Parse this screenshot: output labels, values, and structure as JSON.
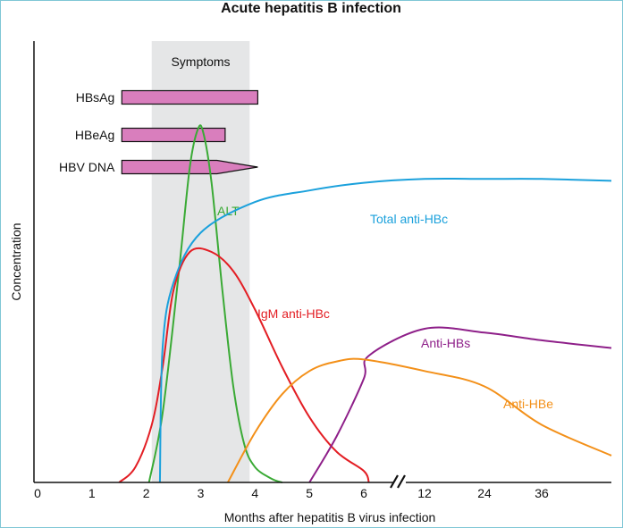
{
  "chart_data": {
    "type": "line",
    "title": "Acute hepatitis B infection",
    "xlabel": "Months after hepatitis B virus infection",
    "ylabel": "Concentration",
    "x_ticks": [
      "0",
      "1",
      "2",
      "3",
      "4",
      "5",
      "6",
      "12",
      "24",
      "36"
    ],
    "x_axis_note": "axis break between 6 and 12",
    "symptoms_band": {
      "label": "Symptoms",
      "start": 2.1,
      "end": 3.9
    },
    "markers": [
      {
        "name": "HBsAg",
        "start": 1.55,
        "end": 4.05,
        "shape": "bar"
      },
      {
        "name": "HBeAg",
        "start": 1.55,
        "end": 3.45,
        "shape": "bar"
      },
      {
        "name": "HBV DNA",
        "start": 1.55,
        "end": 4.05,
        "shape": "arrow"
      }
    ],
    "series": [
      {
        "name": "ALT",
        "color": "#3aaa35",
        "points": [
          [
            2.05,
            0
          ],
          [
            2.3,
            0.18
          ],
          [
            2.6,
            0.55
          ],
          [
            2.8,
            0.82
          ],
          [
            2.95,
            0.92
          ],
          [
            3.05,
            0.91
          ],
          [
            3.2,
            0.78
          ],
          [
            3.4,
            0.5
          ],
          [
            3.6,
            0.25
          ],
          [
            3.8,
            0.1
          ],
          [
            4.0,
            0.04
          ],
          [
            4.3,
            0.01
          ],
          [
            4.5,
            0
          ]
        ]
      },
      {
        "name": "IgM anti-HBc",
        "color": "#e31e24",
        "points": [
          [
            1.5,
            0
          ],
          [
            1.8,
            0.04
          ],
          [
            2.1,
            0.15
          ],
          [
            2.3,
            0.3
          ],
          [
            2.5,
            0.5
          ],
          [
            2.8,
            0.6
          ],
          [
            3.2,
            0.6
          ],
          [
            3.6,
            0.55
          ],
          [
            4.0,
            0.45
          ],
          [
            4.5,
            0.3
          ],
          [
            5.0,
            0.17
          ],
          [
            5.5,
            0.08
          ],
          [
            6.0,
            0.03
          ],
          [
            6.5,
            0
          ]
        ]
      },
      {
        "name": "Total anti-HBc",
        "color": "#1ba1dc",
        "points": [
          [
            2.25,
            0
          ],
          [
            2.3,
            0.35
          ],
          [
            2.5,
            0.52
          ],
          [
            3.0,
            0.65
          ],
          [
            4.0,
            0.73
          ],
          [
            5.0,
            0.76
          ],
          [
            6.0,
            0.78
          ],
          [
            12,
            0.79
          ],
          [
            24,
            0.79
          ],
          [
            36,
            0.79
          ],
          [
            44,
            0.785
          ]
        ]
      },
      {
        "name": "Anti-HBs",
        "color": "#8e1f89",
        "points": [
          [
            5.0,
            0
          ],
          [
            5.5,
            0.12
          ],
          [
            6.0,
            0.27
          ],
          [
            6.5,
            0.33
          ],
          [
            12,
            0.4
          ],
          [
            24,
            0.39
          ],
          [
            36,
            0.37
          ],
          [
            44,
            0.35
          ]
        ]
      },
      {
        "name": "Anti-HBe",
        "color": "#f39019",
        "points": [
          [
            3.5,
            0
          ],
          [
            4.0,
            0.13
          ],
          [
            4.5,
            0.23
          ],
          [
            5.0,
            0.29
          ],
          [
            5.5,
            0.315
          ],
          [
            6.0,
            0.32
          ],
          [
            12,
            0.29
          ],
          [
            24,
            0.25
          ],
          [
            36,
            0.15
          ],
          [
            44,
            0.07
          ]
        ]
      }
    ]
  },
  "colors": {
    "band": "#e5e6e7",
    "marker_fill": "#d97ebd",
    "axis": "#111111",
    "border": "#7fc7d6"
  }
}
